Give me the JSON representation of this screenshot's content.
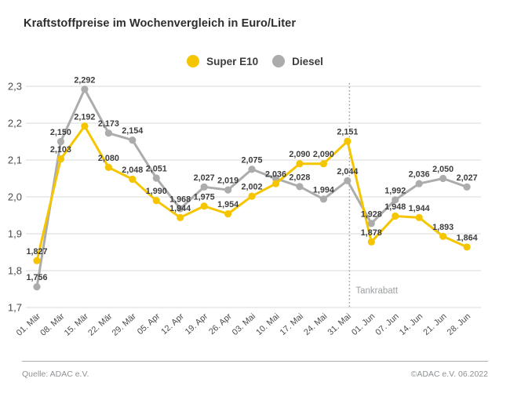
{
  "title": "Kraftstoffpreise im Wochenvergleich in Euro/Liter",
  "legend": [
    {
      "label": "Super E10",
      "color": "#f5c500"
    },
    {
      "label": "Diesel",
      "color": "#acacac"
    }
  ],
  "chart_data": {
    "type": "line",
    "title": "Kraftstoffpreise im Wochenvergleich in Euro/Liter",
    "unit": "Euro/Liter",
    "categories": [
      "01. Mär",
      "08. Mär",
      "15. Mär",
      "22. Mär",
      "29. Mär",
      "05. Apr",
      "12. Apr",
      "19. Apr",
      "26. Apr",
      "03. Mai",
      "10. Mai",
      "17. Mai",
      "24. Mai",
      "31. Mai",
      "01. Jun",
      "07. Jun",
      "14. Jun",
      "21. Jun",
      "28. Jun"
    ],
    "series": [
      {
        "name": "Diesel",
        "color": "#acacac",
        "values": [
          1.756,
          2.15,
          2.292,
          2.173,
          2.154,
          2.051,
          1.968,
          2.027,
          2.019,
          2.075,
          2.05,
          2.028,
          1.994,
          2.044,
          1.928,
          1.992,
          2.036,
          2.05,
          2.027
        ],
        "labels": [
          "1,756",
          "2,150",
          "2,292",
          "2,173",
          "2,154",
          "2,051",
          "1,968",
          "2,027",
          "2,019",
          "2,075",
          "",
          "2,028",
          "1,994",
          "2,044",
          "1,928",
          "1,992",
          "2,036",
          "2,050",
          "2,027"
        ]
      },
      {
        "name": "Super E10",
        "color": "#f5c500",
        "values": [
          1.827,
          2.103,
          2.192,
          2.08,
          2.048,
          1.99,
          1.944,
          1.975,
          1.954,
          2.002,
          2.036,
          2.09,
          2.09,
          2.151,
          1.878,
          1.948,
          1.944,
          1.893,
          1.864
        ],
        "labels": [
          "1,827",
          "2,103",
          "2,192",
          "2,080",
          "2,048",
          "1,990",
          "1,944",
          "1,975",
          "1,954",
          "2,002",
          "2,036",
          "2,090",
          "2,090",
          "2,151",
          "1,878",
          "1,948",
          "1,944",
          "1,893",
          "1,864"
        ]
      }
    ],
    "ylim": [
      1.7,
      2.3
    ],
    "yticks": [
      "2,3",
      "2,2",
      "2,1",
      "2,0",
      "1,9",
      "1,8",
      "1,7"
    ],
    "grid": true,
    "legend_position": "top",
    "annotation": {
      "label": "Tankrabatt",
      "after_category": "31. Mai",
      "style": "dotted-vertical-line"
    },
    "text_color": "#3d3d3d",
    "axis_text_color": "#4b4b4b",
    "grid_color": "#d9d9d9",
    "annotation_color": "#9b9ea1"
  },
  "footer": {
    "source": "Quelle: ADAC e.V.",
    "copyright": "©ADAC e.V.  06.2022"
  }
}
